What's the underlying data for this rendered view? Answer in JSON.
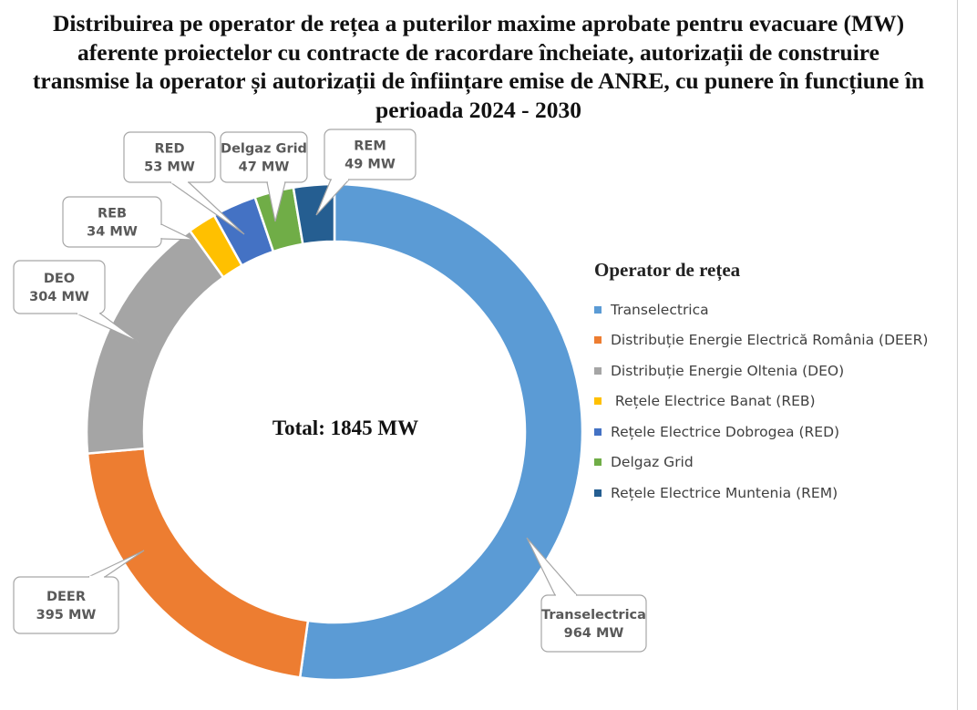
{
  "chart_data": {
    "type": "pie",
    "variant": "donut",
    "title": "Distribuirea pe operator de rețea a puterilor maxime aprobate pentru evacuare (MW) aferente proiectelor cu contracte de racordare încheiate, autorizații de construire transmise la operator și autorizații de înființare emise de ANRE, cu punere în funcțiune în perioada 2024 - 2030",
    "center_label": "Total: 1845 MW",
    "legend_title": "Operator de rețea",
    "legend_position": "right",
    "unit": "MW",
    "slices": [
      {
        "legend": "Transelectrica",
        "label": "Transelectrica",
        "value": 964,
        "value_text": "964 MW",
        "color": "#5b9bd5"
      },
      {
        "legend": "Distribuție Energie Electrică România (DEER)",
        "label": "DEER",
        "value": 395,
        "value_text": "395 MW",
        "color": "#ed7d31"
      },
      {
        "legend": "Distribuție Energie Oltenia (DEO)",
        "label": "DEO",
        "value": 304,
        "value_text": "304 MW",
        "color": "#a5a5a5"
      },
      {
        "legend": " Rețele Electrice Banat (REB)",
        "label": "REB",
        "value": 34,
        "value_text": "34 MW",
        "color": "#ffc000"
      },
      {
        "legend": "Rețele Electrice Dobrogea (RED)",
        "label": "RED",
        "value": 53,
        "value_text": "53 MW",
        "color": "#4472c4"
      },
      {
        "legend": "Delgaz Grid",
        "label": "Delgaz Grid",
        "value": 47,
        "value_text": "47 MW",
        "color": "#70ad47"
      },
      {
        "legend": "Rețele Electrice Muntenia (REM)",
        "label": "REM",
        "value": 49,
        "value_text": "49 MW",
        "color": "#255e91"
      }
    ]
  }
}
